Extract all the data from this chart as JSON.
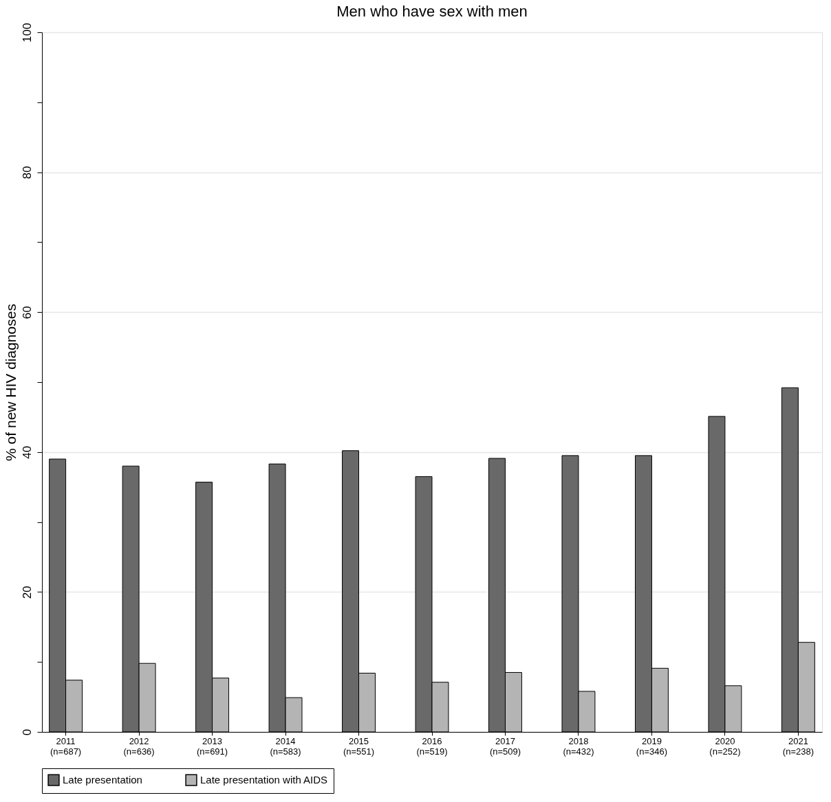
{
  "chart_data": {
    "type": "bar",
    "title": "Men who have sex with men",
    "ylabel": "% of new HIV diagnoses",
    "categories": [
      "2011 (n=687)",
      "2012 (n=636)",
      "2013 (n=691)",
      "2014 (n=583)",
      "2015 (n=551)",
      "2016 (n=519)",
      "2017 (n=509)",
      "2018 (n=432)",
      "2019 (n=346)",
      "2020 (n=252)",
      "2021 (n=238)"
    ],
    "series": [
      {
        "name": "Late presentation",
        "color": "#696969",
        "values": [
          39.0,
          38.0,
          35.7,
          38.3,
          40.2,
          36.5,
          39.1,
          39.5,
          39.5,
          45.1,
          49.2
        ]
      },
      {
        "name": "Late presentation with AIDS",
        "color": "#b4b4b4",
        "values": [
          7.4,
          9.8,
          7.7,
          4.9,
          8.4,
          7.1,
          8.5,
          5.8,
          9.1,
          6.6,
          12.8
        ]
      }
    ],
    "ylim": [
      0,
      100
    ],
    "yticks": [
      0,
      {
        "value": 10,
        "label": null
      },
      20,
      {
        "value": 30,
        "label": null
      },
      40,
      {
        "value": 50,
        "label": null
      },
      60,
      {
        "value": 70,
        "label": null
      },
      80,
      {
        "value": 90,
        "label": null
      },
      100
    ],
    "grid": "y",
    "legend": "bottom"
  }
}
